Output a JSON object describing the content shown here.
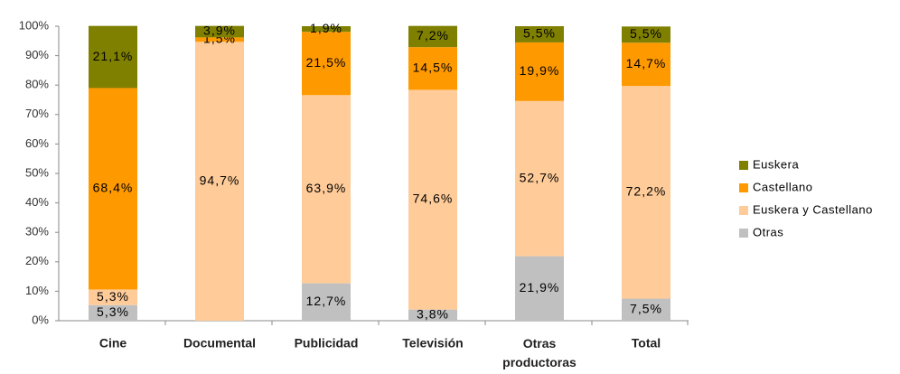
{
  "chart_data": {
    "type": "stacked_bar",
    "categories": [
      "Cine",
      "Documental",
      "Publicidad",
      "Televisión",
      "Otras productoras",
      "Total"
    ],
    "series": [
      {
        "name": "Otras",
        "color": "#c0c0c0",
        "values": [
          5.3,
          null,
          12.7,
          3.8,
          21.9,
          7.5
        ],
        "value_labels": [
          "5,3%",
          null,
          "12,7%",
          "3,8%",
          "21,9%",
          "7,5%"
        ]
      },
      {
        "name": "Euskera y Castellano",
        "color": "#ffcc99",
        "values": [
          5.3,
          94.7,
          63.9,
          74.6,
          52.7,
          72.2
        ],
        "value_labels": [
          "5,3%",
          "94,7%",
          "63,9%",
          "74,6%",
          "52,7%",
          "72,2%"
        ]
      },
      {
        "name": "Castellano",
        "color": "#ff9900",
        "values": [
          68.4,
          1.5,
          21.5,
          14.5,
          19.9,
          14.7
        ],
        "value_labels": [
          "68,4%",
          "1,5%",
          "21,5%",
          "14,5%",
          "19,9%",
          "14,7%"
        ]
      },
      {
        "name": "Euskera",
        "color": "#808000",
        "values": [
          21.1,
          3.9,
          1.9,
          7.2,
          5.5,
          5.5
        ],
        "value_labels": [
          "21,1%",
          "3,9%",
          "1,9%",
          "7,2%",
          "5,5%",
          "5,5%"
        ]
      }
    ],
    "ylim": [
      0,
      100
    ],
    "yticks": [
      {
        "value": 0,
        "label": "0%"
      },
      {
        "value": 10,
        "label": "10%"
      },
      {
        "value": 20,
        "label": "20%"
      },
      {
        "value": 30,
        "label": "30%"
      },
      {
        "value": 40,
        "label": "40%"
      },
      {
        "value": 50,
        "label": "50%"
      },
      {
        "value": 60,
        "label": "60%"
      },
      {
        "value": 70,
        "label": "70%"
      },
      {
        "value": 80,
        "label": "80%"
      },
      {
        "value": 90,
        "label": "90%"
      },
      {
        "value": 100,
        "label": "100%"
      }
    ],
    "grid": false,
    "legend": "right"
  }
}
